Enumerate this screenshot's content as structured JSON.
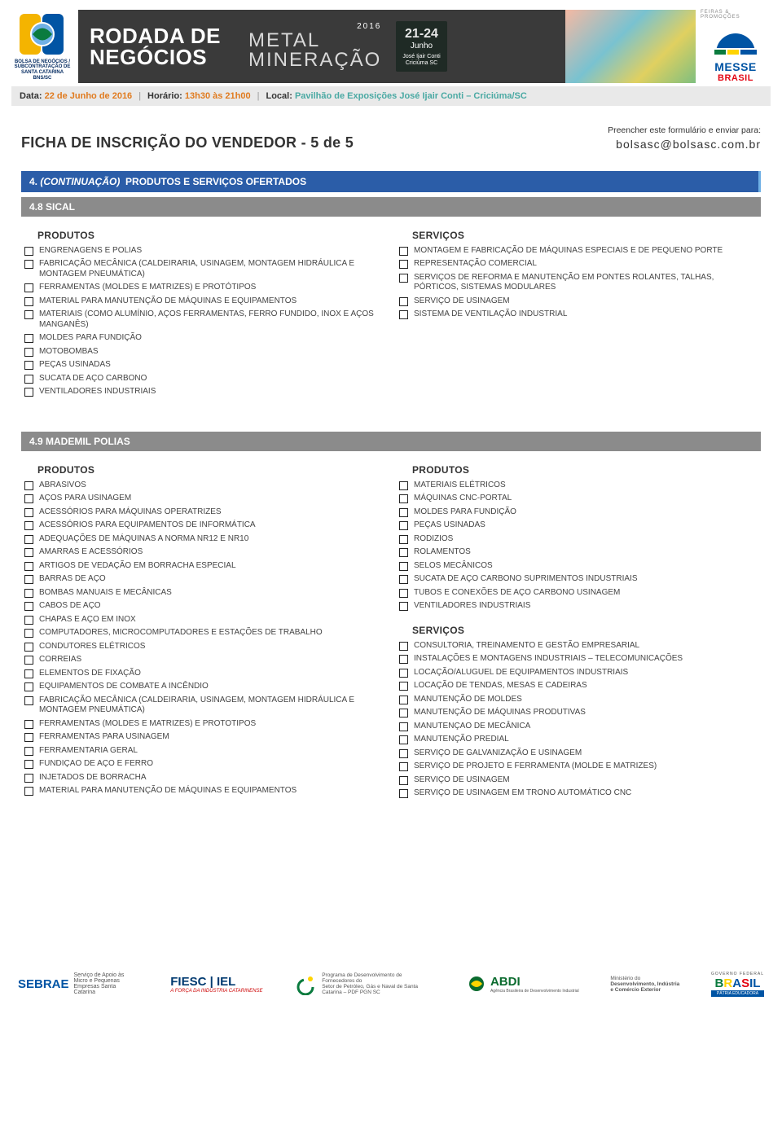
{
  "header": {
    "rodada_line1": "RODADA DE",
    "rodada_line2": "NEGÓCIOS",
    "metal_line1": "METAL",
    "metal_line2": "MINERAÇÃO",
    "year": "2016",
    "date_big": "21-24",
    "date_month": "Junho",
    "date_venue1": "José Ijair Conti",
    "date_venue2": "Criciúma SC",
    "left_logo_caption": "BOLSA DE NEGÓCIOS / SUBCONTRATAÇÃO DE SANTA CATARINA BNS/SC",
    "right_logo_top": "FEIRAS & PROMOÇÕES",
    "right_logo_name": "MESSE",
    "right_logo_sub": "BRASIL"
  },
  "infoline": {
    "data_label": "Data:",
    "data_value": "22 de Junho de 2016",
    "horario_label": "Horário:",
    "horario_value": "13h30 às 21h00",
    "local_label": "Local:",
    "local_value": "Pavilhão de Exposições José Ijair Conti – Criciúma/SC"
  },
  "title": "FICHA DE INSCRIÇÃO DO VENDEDOR - 5 de 5",
  "sendto_line1": "Preencher este formulário e enviar para:",
  "sendto_email": "bolsasc@bolsasc.com.br",
  "section4_header_prefix": "4.",
  "section4_header_ital": "(CONTINUAÇÃO)",
  "section4_header_rest": "PRODUTOS E SERVIÇOS OFERTADOS",
  "sical": {
    "header": "4.8 SICAL",
    "produtos_label": "PRODUTOS",
    "servicos_label": "SERVIÇOS",
    "produtos": [
      "ENGRENAGENS E POLIAS",
      "FABRICAÇÃO MECÂNICA (CALDEIRARIA, USINAGEM, MONTAGEM HIDRÁULICA E MONTAGEM PNEUMÁTICA)",
      "FERRAMENTAS (MOLDES E MATRIZES) E PROTÓTIPOS",
      "MATERIAL PARA MANUTENÇÃO DE MÁQUINAS E EQUIPAMENTOS",
      "MATERIAIS (COMO ALUMÍNIO, AÇOS FERRAMENTAS, FERRO FUNDIDO, INOX E AÇOS MANGANÊS)",
      "MOLDES PARA FUNDIÇÃO",
      "MOTOBOMBAS",
      "PEÇAS USINADAS",
      "SUCATA DE AÇO CARBONO",
      "VENTILADORES INDUSTRIAIS"
    ],
    "servicos": [
      "MONTAGEM E FABRICAÇÃO DE MÁQUINAS ESPECIAIS E DE PEQUENO PORTE",
      "REPRESENTAÇÃO COMERCIAL",
      "SERVIÇOS DE REFORMA E MANUTENÇÃO EM PONTES ROLANTES, TALHAS, PÓRTICOS, SISTEMAS MODULARES",
      "SERVIÇO DE USINAGEM",
      "SISTEMA DE VENTILAÇÃO INDUSTRIAL"
    ]
  },
  "mademil": {
    "header": "4.9 MADEMIL POLIAS",
    "produtos_label": "PRODUTOS",
    "servicos_label": "SERVIÇOS",
    "produtos_left": [
      "ABRASIVOS",
      "AÇOS PARA USINAGEM",
      "ACESSÓRIOS PARA MÁQUINAS OPERATRIZES",
      "ACESSÓRIOS PARA EQUIPAMENTOS DE INFORMÁTICA",
      "ADEQUAÇÕES DE MÁQUINAS A NORMA NR12 E NR10",
      "AMARRAS E ACESSÓRIOS",
      "ARTIGOS DE VEDAÇÃO EM BORRACHA ESPECIAL",
      "BARRAS DE AÇO",
      "BOMBAS MANUAIS E MECÂNICAS",
      "CABOS DE AÇO",
      "CHAPAS E AÇO EM INOX",
      "COMPUTADORES, MICROCOMPUTADORES E ESTAÇÕES DE TRABALHO",
      "CONDUTORES ELÉTRICOS",
      "CORREIAS",
      "ELEMENTOS DE FIXAÇÃO",
      "EQUIPAMENTOS DE COMBATE A INCÊNDIO",
      "FABRICAÇÃO MECÂNICA (CALDEIRARIA, USINAGEM, MONTAGEM HIDRÁULICA E MONTAGEM PNEUMÁTICA)",
      "FERRAMENTAS (MOLDES E MATRIZES) E PROTOTIPOS",
      "FERRAMENTAS PARA USINAGEM",
      "FERRAMENTARIA GERAL",
      "FUNDIÇAO DE AÇO E FERRO",
      "INJETADOS DE BORRACHA",
      "MATERIAL PARA MANUTENÇÃO DE MÁQUINAS E EQUIPAMENTOS"
    ],
    "produtos_right": [
      "MATERIAIS ELÉTRICOS",
      "MÁQUINAS CNC-PORTAL",
      "MOLDES PARA FUNDIÇÃO",
      "PEÇAS USINADAS",
      "RODIZIOS",
      "ROLAMENTOS",
      "SELOS MECÂNICOS",
      "SUCATA DE AÇO CARBONO SUPRIMENTOS INDUSTRIAIS",
      "TUBOS E CONEXÕES DE AÇO CARBONO USINAGEM",
      "VENTILADORES INDUSTRIAIS"
    ],
    "servicos": [
      "CONSULTORIA, TREINAMENTO E GESTÃO EMPRESARIAL",
      "INSTALAÇÕES E MONTAGENS INDUSTRIAIS – TELECOMUNICAÇÕES",
      "LOCAÇÃO/ALUGUEL DE EQUIPAMENTOS INDUSTRIAIS",
      "LOCAÇÃO DE TENDAS, MESAS E CADEIRAS",
      "MANUTENÇÃO DE MOLDES",
      "MANUTENÇÃO DE MÁQUINAS PRODUTIVAS",
      "MANUTENÇAO DE MECÂNICA",
      "MANUTENÇÃO PREDIAL",
      "SERVIÇO DE GALVANIZAÇÃO E USINAGEM",
      "SERVIÇO DE PROJETO E FERRAMENTA (MOLDE E MATRIZES)",
      "SERVIÇO DE USINAGEM",
      "SERVIÇO DE USINAGEM EM TRONO AUTOMÁTICO CNC"
    ]
  },
  "footer": {
    "sebrae_name": "SEBRAE",
    "sebrae_sub": "Serviço de Apoio às Micro e Pequenas Empresas Santa Catarina",
    "fiesc_name": "FIESC | IEL",
    "fiesc_sub": "A FORÇA DA INDÚSTRIA CATARINENSE",
    "pdf_line1": "Programa de Desenvolvimento de Fornecedores do",
    "pdf_line2": "Setor de Petróleo, Gás e Naval de Santa Catarina – PDF PGN SC",
    "abdi_name": "ABDI",
    "abdi_sub": "Agência Brasileira de Desenvolvimento Industrial",
    "ministerio_line1": "Ministério do",
    "ministerio_line2": "Desenvolvimento, Indústria",
    "ministerio_line3": "e Comércio Exterior",
    "brasil_top": "GOVERNO FEDERAL",
    "brasil_name": "BRASIL",
    "brasil_sub": "PÁTRIA EDUCADORA"
  },
  "colors": {
    "blue_bar": "#2b5da8",
    "blue_bar_accent": "#6fb0e5",
    "gray_bar": "#8b8b8b",
    "orange": "#e07b1f",
    "teal": "#4aa9a3"
  }
}
